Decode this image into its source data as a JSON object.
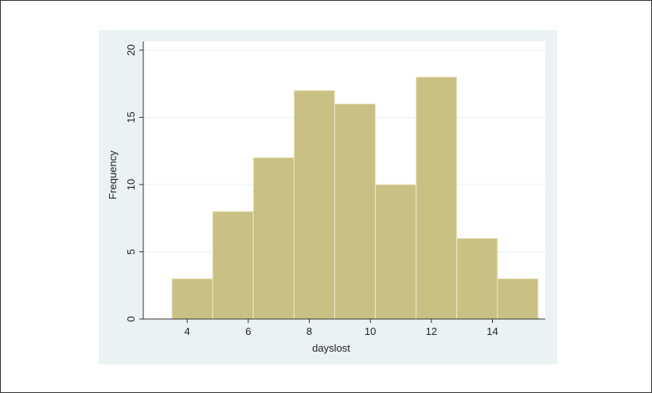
{
  "colors": {
    "outer_background": "#eaf2f3",
    "plot_background": "#ffffff",
    "bar_fill": "#c9c183",
    "bar_edge": "#ede9c9",
    "grid": "#e8eff0",
    "axis": "#333333"
  },
  "chart_data": {
    "type": "bar",
    "histogram": true,
    "xlabel": "dayslost",
    "ylabel": "Frequency",
    "xlim": [
      3.5,
      15.5
    ],
    "ylim": [
      0,
      20
    ],
    "xticks": [
      4,
      6,
      8,
      10,
      12,
      14
    ],
    "yticks": [
      0,
      5,
      10,
      15,
      20
    ],
    "grid": true,
    "bins": [
      {
        "start": 3.5,
        "end": 4.8333,
        "value": 3
      },
      {
        "start": 4.8333,
        "end": 6.1667,
        "value": 8
      },
      {
        "start": 6.1667,
        "end": 7.5,
        "value": 12
      },
      {
        "start": 7.5,
        "end": 8.8333,
        "value": 17
      },
      {
        "start": 8.8333,
        "end": 10.1667,
        "value": 16
      },
      {
        "start": 10.1667,
        "end": 11.5,
        "value": 10
      },
      {
        "start": 11.5,
        "end": 12.8333,
        "value": 18
      },
      {
        "start": 12.8333,
        "end": 14.1667,
        "value": 6
      },
      {
        "start": 14.1667,
        "end": 15.5,
        "value": 3
      }
    ]
  }
}
